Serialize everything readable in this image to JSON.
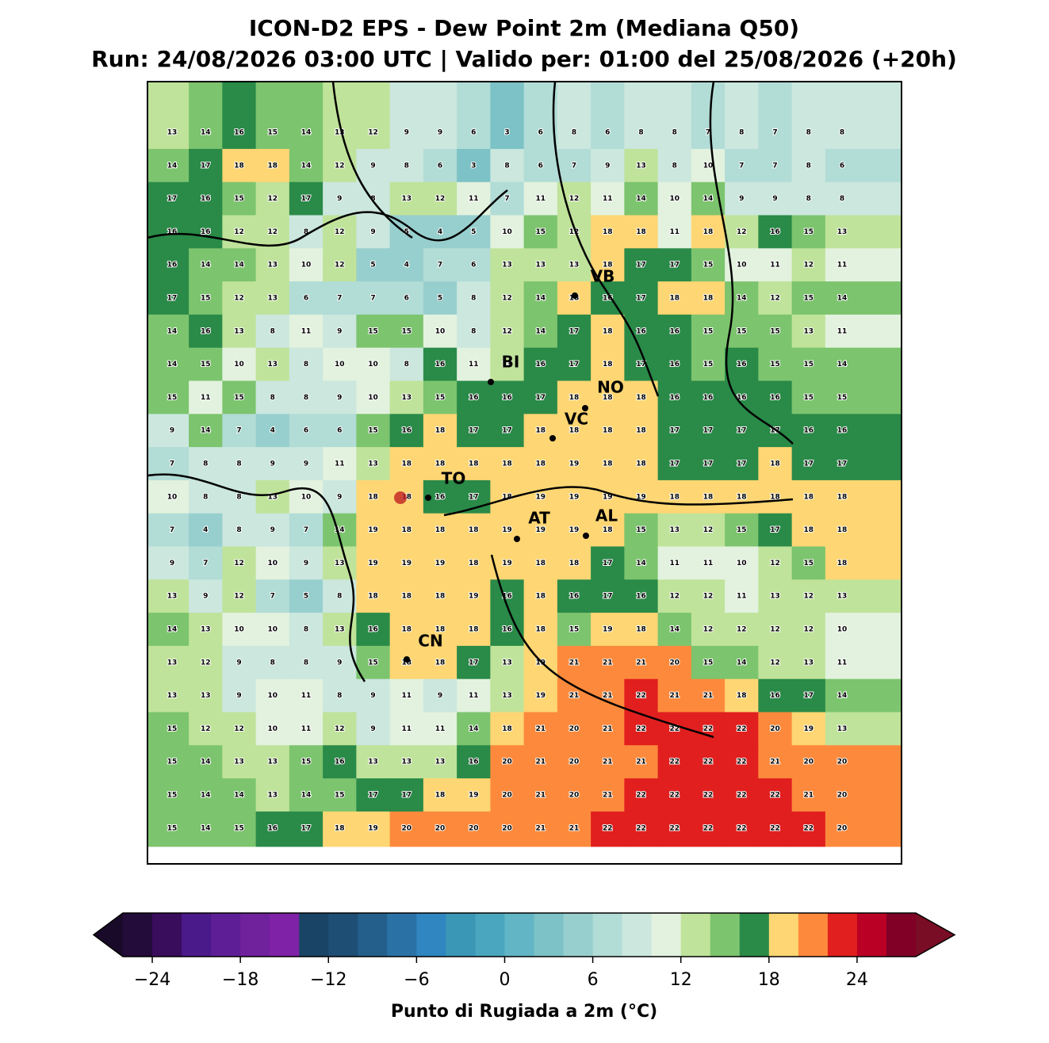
{
  "title": "ICON-D2 EPS - Dew Point 2m (Mediana Q50)",
  "subtitle": "Run: 24/08/2026 03:00 UTC | Valido per: 01:00 del 25/08/2026 (+20h)",
  "map": {
    "values": [
      [
        13,
        14,
        16,
        15,
        14,
        13,
        12,
        9,
        9,
        6,
        3,
        6,
        8,
        6,
        8,
        8,
        7,
        8,
        7,
        8,
        8
      ],
      [
        14,
        17,
        18,
        18,
        14,
        12,
        9,
        8,
        6,
        3,
        8,
        6,
        7,
        9,
        13,
        8,
        10,
        7,
        7,
        8,
        6
      ],
      [
        17,
        16,
        15,
        12,
        17,
        9,
        8,
        13,
        12,
        11,
        7,
        11,
        12,
        11,
        14,
        10,
        14,
        9,
        9,
        8,
        8
      ],
      [
        16,
        16,
        12,
        12,
        8,
        12,
        9,
        5,
        4,
        5,
        10,
        15,
        12,
        18,
        18,
        11,
        18,
        12,
        16,
        15,
        13
      ],
      [
        16,
        14,
        14,
        13,
        10,
        12,
        5,
        4,
        7,
        6,
        13,
        13,
        13,
        18,
        17,
        17,
        15,
        10,
        11,
        12,
        11
      ],
      [
        17,
        15,
        12,
        13,
        6,
        7,
        7,
        6,
        5,
        8,
        12,
        14,
        18,
        16,
        17,
        18,
        18,
        14,
        12,
        15,
        14
      ],
      [
        14,
        16,
        13,
        8,
        11,
        9,
        15,
        15,
        10,
        8,
        12,
        14,
        17,
        18,
        16,
        16,
        15,
        15,
        15,
        13,
        11
      ],
      [
        14,
        15,
        10,
        13,
        8,
        10,
        10,
        8,
        16,
        11,
        13,
        16,
        17,
        18,
        17,
        16,
        15,
        16,
        15,
        15,
        14
      ],
      [
        15,
        11,
        15,
        8,
        8,
        9,
        10,
        13,
        15,
        16,
        16,
        17,
        18,
        18,
        18,
        16,
        16,
        16,
        16,
        15,
        15
      ],
      [
        9,
        14,
        7,
        4,
        6,
        6,
        15,
        16,
        18,
        17,
        17,
        18,
        18,
        18,
        18,
        17,
        17,
        17,
        17,
        16,
        16
      ],
      [
        7,
        8,
        8,
        9,
        9,
        11,
        13,
        18,
        18,
        18,
        18,
        18,
        19,
        18,
        18,
        17,
        17,
        17,
        18,
        17,
        17
      ],
      [
        10,
        8,
        8,
        13,
        10,
        9,
        18,
        18,
        16,
        17,
        18,
        19,
        19,
        19,
        19,
        18,
        18,
        18,
        18,
        18,
        18
      ],
      [
        7,
        4,
        8,
        9,
        7,
        14,
        19,
        18,
        18,
        18,
        19,
        19,
        19,
        18,
        15,
        13,
        12,
        15,
        17,
        18,
        18
      ],
      [
        9,
        7,
        12,
        10,
        9,
        13,
        19,
        19,
        19,
        18,
        19,
        18,
        18,
        17,
        14,
        11,
        11,
        10,
        12,
        15,
        18
      ],
      [
        13,
        9,
        12,
        7,
        5,
        8,
        18,
        18,
        18,
        19,
        16,
        18,
        16,
        17,
        16,
        12,
        12,
        11,
        13,
        12,
        13
      ],
      [
        14,
        13,
        10,
        10,
        8,
        13,
        16,
        18,
        18,
        18,
        16,
        18,
        15,
        19,
        18,
        14,
        12,
        12,
        12,
        12,
        10
      ],
      [
        13,
        12,
        9,
        8,
        8,
        9,
        15,
        18,
        18,
        17,
        13,
        19,
        21,
        21,
        21,
        20,
        15,
        14,
        12,
        13,
        11
      ],
      [
        13,
        13,
        9,
        10,
        11,
        8,
        9,
        11,
        9,
        11,
        13,
        19,
        21,
        21,
        22,
        21,
        21,
        18,
        16,
        17,
        14
      ],
      [
        15,
        12,
        12,
        10,
        11,
        12,
        9,
        11,
        11,
        14,
        18,
        21,
        20,
        21,
        22,
        22,
        22,
        22,
        20,
        19,
        13
      ],
      [
        15,
        14,
        13,
        13,
        15,
        16,
        13,
        13,
        13,
        16,
        20,
        21,
        20,
        21,
        21,
        22,
        22,
        22,
        21,
        20,
        20
      ],
      [
        15,
        14,
        14,
        13,
        14,
        15,
        17,
        17,
        18,
        19,
        20,
        21,
        20,
        21,
        22,
        22,
        22,
        22,
        22,
        21,
        20
      ],
      [
        15,
        14,
        15,
        16,
        17,
        18,
        19,
        20,
        20,
        20,
        20,
        21,
        21,
        22,
        22,
        22,
        22,
        22,
        22,
        22,
        20
      ]
    ],
    "cities": [
      "VB",
      "BI",
      "NO",
      "VC",
      "TO",
      "AT",
      "AL",
      "CN"
    ]
  },
  "colorbar": {
    "label": "Punto di Rugiada a 2m (°C)",
    "lim": [
      -26,
      28
    ],
    "colors": [
      "#230b3a",
      "#3a0c5c",
      "#4a1a8a",
      "#5e1f96",
      "#70219c",
      "#8022a8",
      "#1a4466",
      "#1e4e74",
      "#245f8c",
      "#2a72a6",
      "#2f86c0",
      "#3a97b6",
      "#4aa6be",
      "#62b5c4",
      "#7cc2c6",
      "#97cfce",
      "#b2dcd6",
      "#cbe7de",
      "#e2f2de",
      "#bfe39a",
      "#7cc46e",
      "#2a8a48",
      "#fed673",
      "#fd8a3c",
      "#e11f1f",
      "#bb0026",
      "#800026"
    ],
    "extend_colors": [
      "#1a0a2a",
      "#7a0d26"
    ],
    "ticks": [
      {
        "value": -24,
        "label": "−24"
      },
      {
        "value": -18,
        "label": "−18"
      },
      {
        "value": -12,
        "label": "−12"
      },
      {
        "value": -6,
        "label": "−6"
      },
      0,
      6,
      12,
      18,
      24
    ]
  }
}
